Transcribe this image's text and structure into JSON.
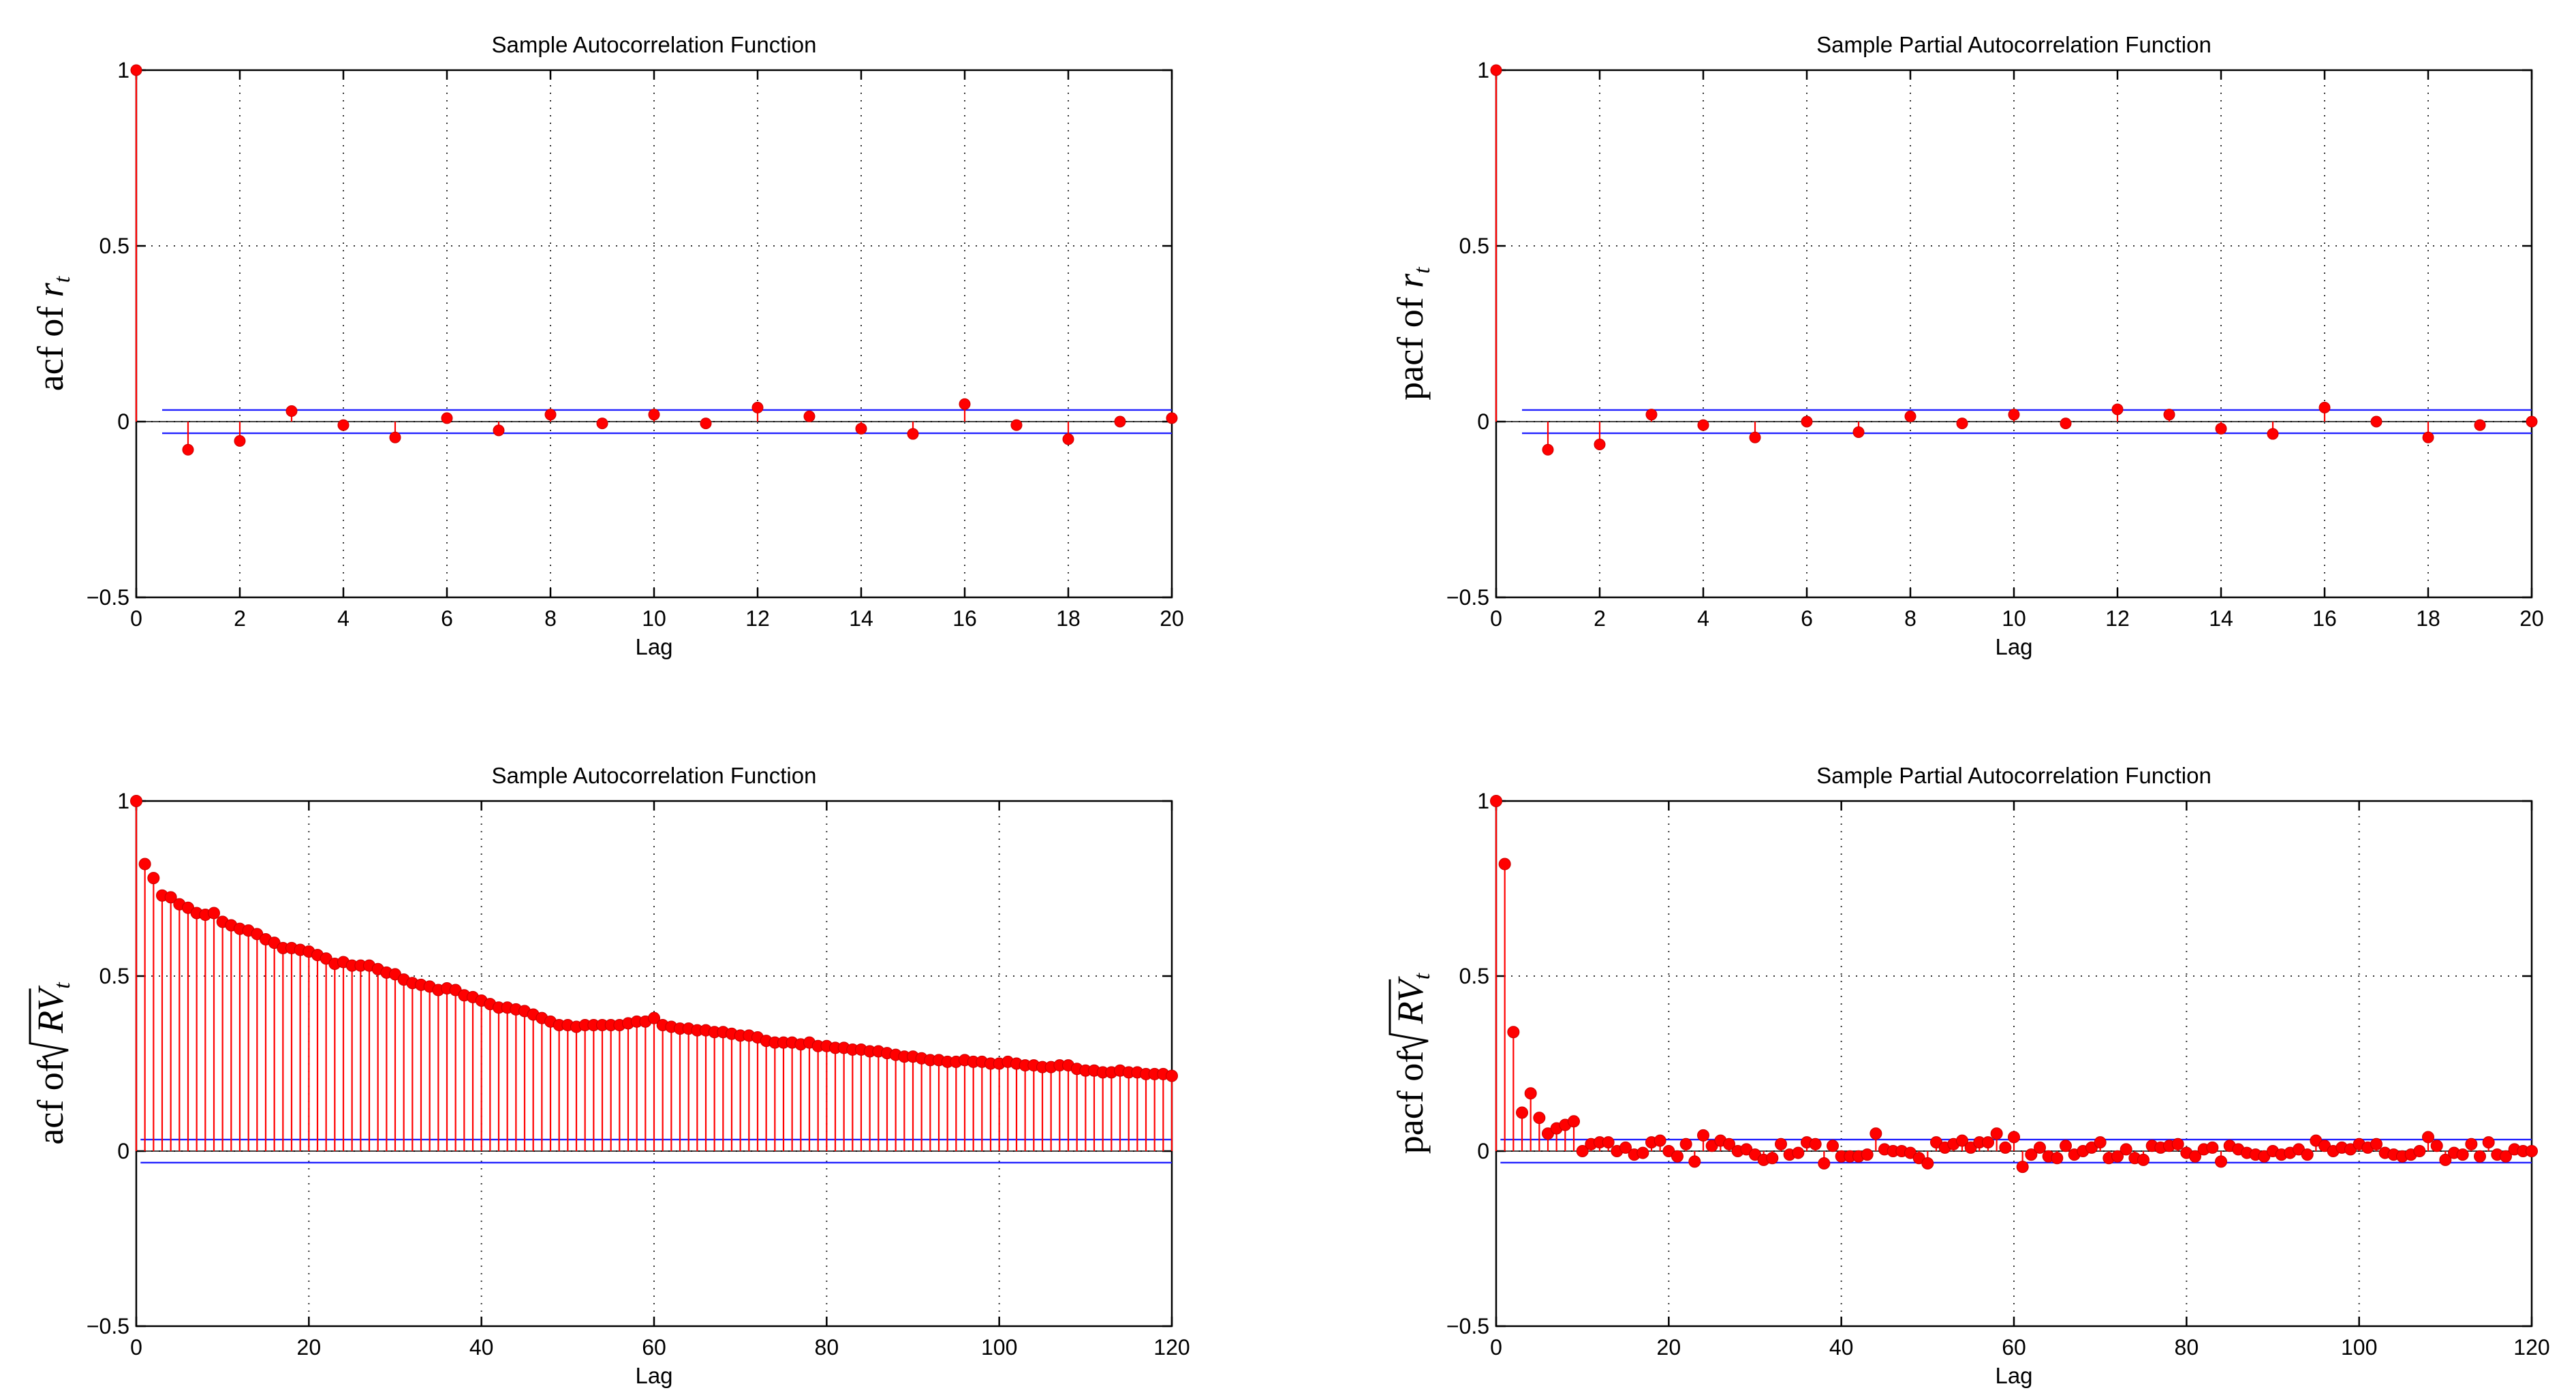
{
  "figure": {
    "title": "Sample ACF / PACF panels",
    "background": "#ffffff"
  },
  "colors": {
    "stem": "#ff0000",
    "marker": "#ff0000",
    "confidence": "#2020ff",
    "axes": "#000000"
  },
  "chart_data": [
    {
      "type": "stem",
      "id": "acf_rt",
      "title": "Sample Autocorrelation Function",
      "xlabel": "Lag",
      "ylabel": {
        "prefix": "acf of ",
        "var": "r",
        "sub": "t",
        "sqrt": false
      },
      "xlim": [
        0,
        20
      ],
      "ylim": [
        -0.5,
        1
      ],
      "xticks": [
        0,
        2,
        4,
        6,
        8,
        10,
        12,
        14,
        16,
        18,
        20
      ],
      "yticks": [
        -0.5,
        0,
        0.5,
        1
      ],
      "ytick_labels": [
        "−0.5",
        "0",
        "0.5",
        "1"
      ],
      "grid": true,
      "confidence_bounds": [
        0.033,
        -0.033
      ],
      "confidence_x_start": 0.5,
      "lags": [
        0,
        1,
        2,
        3,
        4,
        5,
        6,
        7,
        8,
        9,
        10,
        11,
        12,
        13,
        14,
        15,
        16,
        17,
        18,
        19,
        20
      ],
      "values": [
        1.0,
        -0.08,
        -0.055,
        0.03,
        -0.01,
        -0.045,
        0.01,
        -0.025,
        0.02,
        -0.005,
        0.02,
        -0.005,
        0.04,
        0.015,
        -0.02,
        -0.035,
        0.05,
        -0.01,
        -0.05,
        0.0,
        0.01
      ]
    },
    {
      "type": "stem",
      "id": "pacf_rt",
      "title": "Sample Partial Autocorrelation Function",
      "xlabel": "Lag",
      "ylabel": {
        "prefix": "pacf of ",
        "var": "r",
        "sub": "t",
        "sqrt": false
      },
      "xlim": [
        0,
        20
      ],
      "ylim": [
        -0.5,
        1
      ],
      "xticks": [
        0,
        2,
        4,
        6,
        8,
        10,
        12,
        14,
        16,
        18,
        20
      ],
      "yticks": [
        -0.5,
        0,
        0.5,
        1
      ],
      "ytick_labels": [
        "−0.5",
        "0",
        "0.5",
        "1"
      ],
      "grid": true,
      "confidence_bounds": [
        0.033,
        -0.033
      ],
      "confidence_x_start": 0.5,
      "lags": [
        0,
        1,
        2,
        3,
        4,
        5,
        6,
        7,
        8,
        9,
        10,
        11,
        12,
        13,
        14,
        15,
        16,
        17,
        18,
        19,
        20
      ],
      "values": [
        1.0,
        -0.08,
        -0.065,
        0.02,
        -0.01,
        -0.045,
        0.0,
        -0.03,
        0.015,
        -0.005,
        0.02,
        -0.005,
        0.035,
        0.02,
        -0.02,
        -0.035,
        0.04,
        0.0,
        -0.045,
        -0.01,
        0.0
      ]
    },
    {
      "type": "stem",
      "id": "acf_sqrtrv",
      "title": "Sample Autocorrelation Function",
      "xlabel": "Lag",
      "ylabel": {
        "prefix": "acf of ",
        "var": "RV",
        "sub": "t",
        "sqrt": true
      },
      "xlim": [
        0,
        120
      ],
      "ylim": [
        -0.5,
        1
      ],
      "xticks": [
        0,
        20,
        40,
        60,
        80,
        100,
        120
      ],
      "yticks": [
        -0.5,
        0,
        0.5,
        1
      ],
      "ytick_labels": [
        "−0.5",
        "0",
        "0.5",
        "1"
      ],
      "grid": true,
      "confidence_bounds": [
        0.033,
        -0.033
      ],
      "confidence_x_start": 0.5,
      "lags": [
        0,
        1,
        2,
        3,
        4,
        5,
        6,
        7,
        8,
        9,
        10,
        11,
        12,
        13,
        14,
        15,
        16,
        17,
        18,
        19,
        20,
        21,
        22,
        23,
        24,
        25,
        26,
        27,
        28,
        29,
        30,
        31,
        32,
        33,
        34,
        35,
        36,
        37,
        38,
        39,
        40,
        41,
        42,
        43,
        44,
        45,
        46,
        47,
        48,
        49,
        50,
        51,
        52,
        53,
        54,
        55,
        56,
        57,
        58,
        59,
        60,
        61,
        62,
        63,
        64,
        65,
        66,
        67,
        68,
        69,
        70,
        71,
        72,
        73,
        74,
        75,
        76,
        77,
        78,
        79,
        80,
        81,
        82,
        83,
        84,
        85,
        86,
        87,
        88,
        89,
        90,
        91,
        92,
        93,
        94,
        95,
        96,
        97,
        98,
        99,
        100,
        101,
        102,
        103,
        104,
        105,
        106,
        107,
        108,
        109,
        110,
        111,
        112,
        113,
        114,
        115,
        116,
        117,
        118,
        119,
        120
      ],
      "values": [
        1.0,
        0.82,
        0.78,
        0.73,
        0.725,
        0.705,
        0.695,
        0.68,
        0.675,
        0.68,
        0.655,
        0.645,
        0.635,
        0.63,
        0.62,
        0.605,
        0.595,
        0.58,
        0.58,
        0.575,
        0.57,
        0.56,
        0.55,
        0.535,
        0.54,
        0.53,
        0.53,
        0.53,
        0.52,
        0.51,
        0.505,
        0.49,
        0.48,
        0.475,
        0.47,
        0.46,
        0.465,
        0.46,
        0.445,
        0.44,
        0.43,
        0.42,
        0.41,
        0.41,
        0.405,
        0.4,
        0.39,
        0.38,
        0.37,
        0.36,
        0.36,
        0.355,
        0.36,
        0.36,
        0.36,
        0.36,
        0.36,
        0.365,
        0.37,
        0.37,
        0.38,
        0.36,
        0.355,
        0.35,
        0.35,
        0.345,
        0.345,
        0.34,
        0.34,
        0.335,
        0.33,
        0.33,
        0.325,
        0.315,
        0.31,
        0.31,
        0.31,
        0.305,
        0.31,
        0.3,
        0.3,
        0.295,
        0.295,
        0.29,
        0.29,
        0.285,
        0.285,
        0.28,
        0.275,
        0.27,
        0.27,
        0.265,
        0.26,
        0.26,
        0.255,
        0.255,
        0.26,
        0.255,
        0.255,
        0.25,
        0.25,
        0.255,
        0.25,
        0.245,
        0.245,
        0.24,
        0.24,
        0.245,
        0.245,
        0.235,
        0.23,
        0.23,
        0.225,
        0.225,
        0.23,
        0.225,
        0.225,
        0.22,
        0.22,
        0.22,
        0.215
      ]
    },
    {
      "type": "stem",
      "id": "pacf_sqrtrv",
      "title": "Sample Partial Autocorrelation Function",
      "xlabel": "Lag",
      "ylabel": {
        "prefix": "pacf of ",
        "var": "RV",
        "sub": "t",
        "sqrt": true
      },
      "xlim": [
        0,
        120
      ],
      "ylim": [
        -0.5,
        1
      ],
      "xticks": [
        0,
        20,
        40,
        60,
        80,
        100,
        120
      ],
      "yticks": [
        -0.5,
        0,
        0.5,
        1
      ],
      "ytick_labels": [
        "−0.5",
        "0",
        "0.5",
        "1"
      ],
      "grid": true,
      "confidence_bounds": [
        0.033,
        -0.033
      ],
      "confidence_x_start": 0.5,
      "lags": [
        0,
        1,
        2,
        3,
        4,
        5,
        6,
        7,
        8,
        9,
        10,
        11,
        12,
        13,
        14,
        15,
        16,
        17,
        18,
        19,
        20,
        21,
        22,
        23,
        24,
        25,
        26,
        27,
        28,
        29,
        30,
        31,
        32,
        33,
        34,
        35,
        36,
        37,
        38,
        39,
        40,
        41,
        42,
        43,
        44,
        45,
        46,
        47,
        48,
        49,
        50,
        51,
        52,
        53,
        54,
        55,
        56,
        57,
        58,
        59,
        60,
        61,
        62,
        63,
        64,
        65,
        66,
        67,
        68,
        69,
        70,
        71,
        72,
        73,
        74,
        75,
        76,
        77,
        78,
        79,
        80,
        81,
        82,
        83,
        84,
        85,
        86,
        87,
        88,
        89,
        90,
        91,
        92,
        93,
        94,
        95,
        96,
        97,
        98,
        99,
        100,
        101,
        102,
        103,
        104,
        105,
        106,
        107,
        108,
        109,
        110,
        111,
        112,
        113,
        114,
        115,
        116,
        117,
        118,
        119,
        120
      ],
      "values": [
        1.0,
        0.82,
        0.34,
        0.11,
        0.165,
        0.095,
        0.05,
        0.065,
        0.075,
        0.085,
        0.0,
        0.02,
        0.025,
        0.025,
        0.0,
        0.01,
        -0.01,
        -0.005,
        0.025,
        0.03,
        0.0,
        -0.015,
        0.02,
        -0.03,
        0.045,
        0.015,
        0.03,
        0.02,
        0.0,
        0.005,
        -0.01,
        -0.025,
        -0.02,
        0.02,
        -0.01,
        -0.005,
        0.025,
        0.02,
        -0.035,
        0.015,
        -0.015,
        -0.015,
        -0.015,
        -0.01,
        0.05,
        0.005,
        0.0,
        0.0,
        -0.005,
        -0.02,
        -0.035,
        0.025,
        0.01,
        0.02,
        0.03,
        0.01,
        0.025,
        0.025,
        0.05,
        0.01,
        0.04,
        -0.045,
        -0.01,
        0.01,
        -0.015,
        -0.02,
        0.015,
        -0.01,
        0.0,
        0.01,
        0.025,
        -0.02,
        -0.015,
        0.005,
        -0.02,
        -0.025,
        0.015,
        0.01,
        0.015,
        0.02,
        -0.005,
        -0.015,
        0.005,
        0.01,
        -0.03,
        0.015,
        0.005,
        -0.005,
        -0.01,
        -0.015,
        0.0,
        -0.01,
        -0.005,
        0.005,
        -0.01,
        0.03,
        0.015,
        0.0,
        0.01,
        0.005,
        0.02,
        0.01,
        0.02,
        -0.005,
        -0.01,
        -0.015,
        -0.01,
        0.0,
        0.04,
        0.015,
        -0.025,
        -0.005,
        -0.01,
        0.02,
        -0.015,
        0.025,
        -0.01,
        -0.015,
        0.005,
        0.0,
        0.0
      ]
    }
  ]
}
